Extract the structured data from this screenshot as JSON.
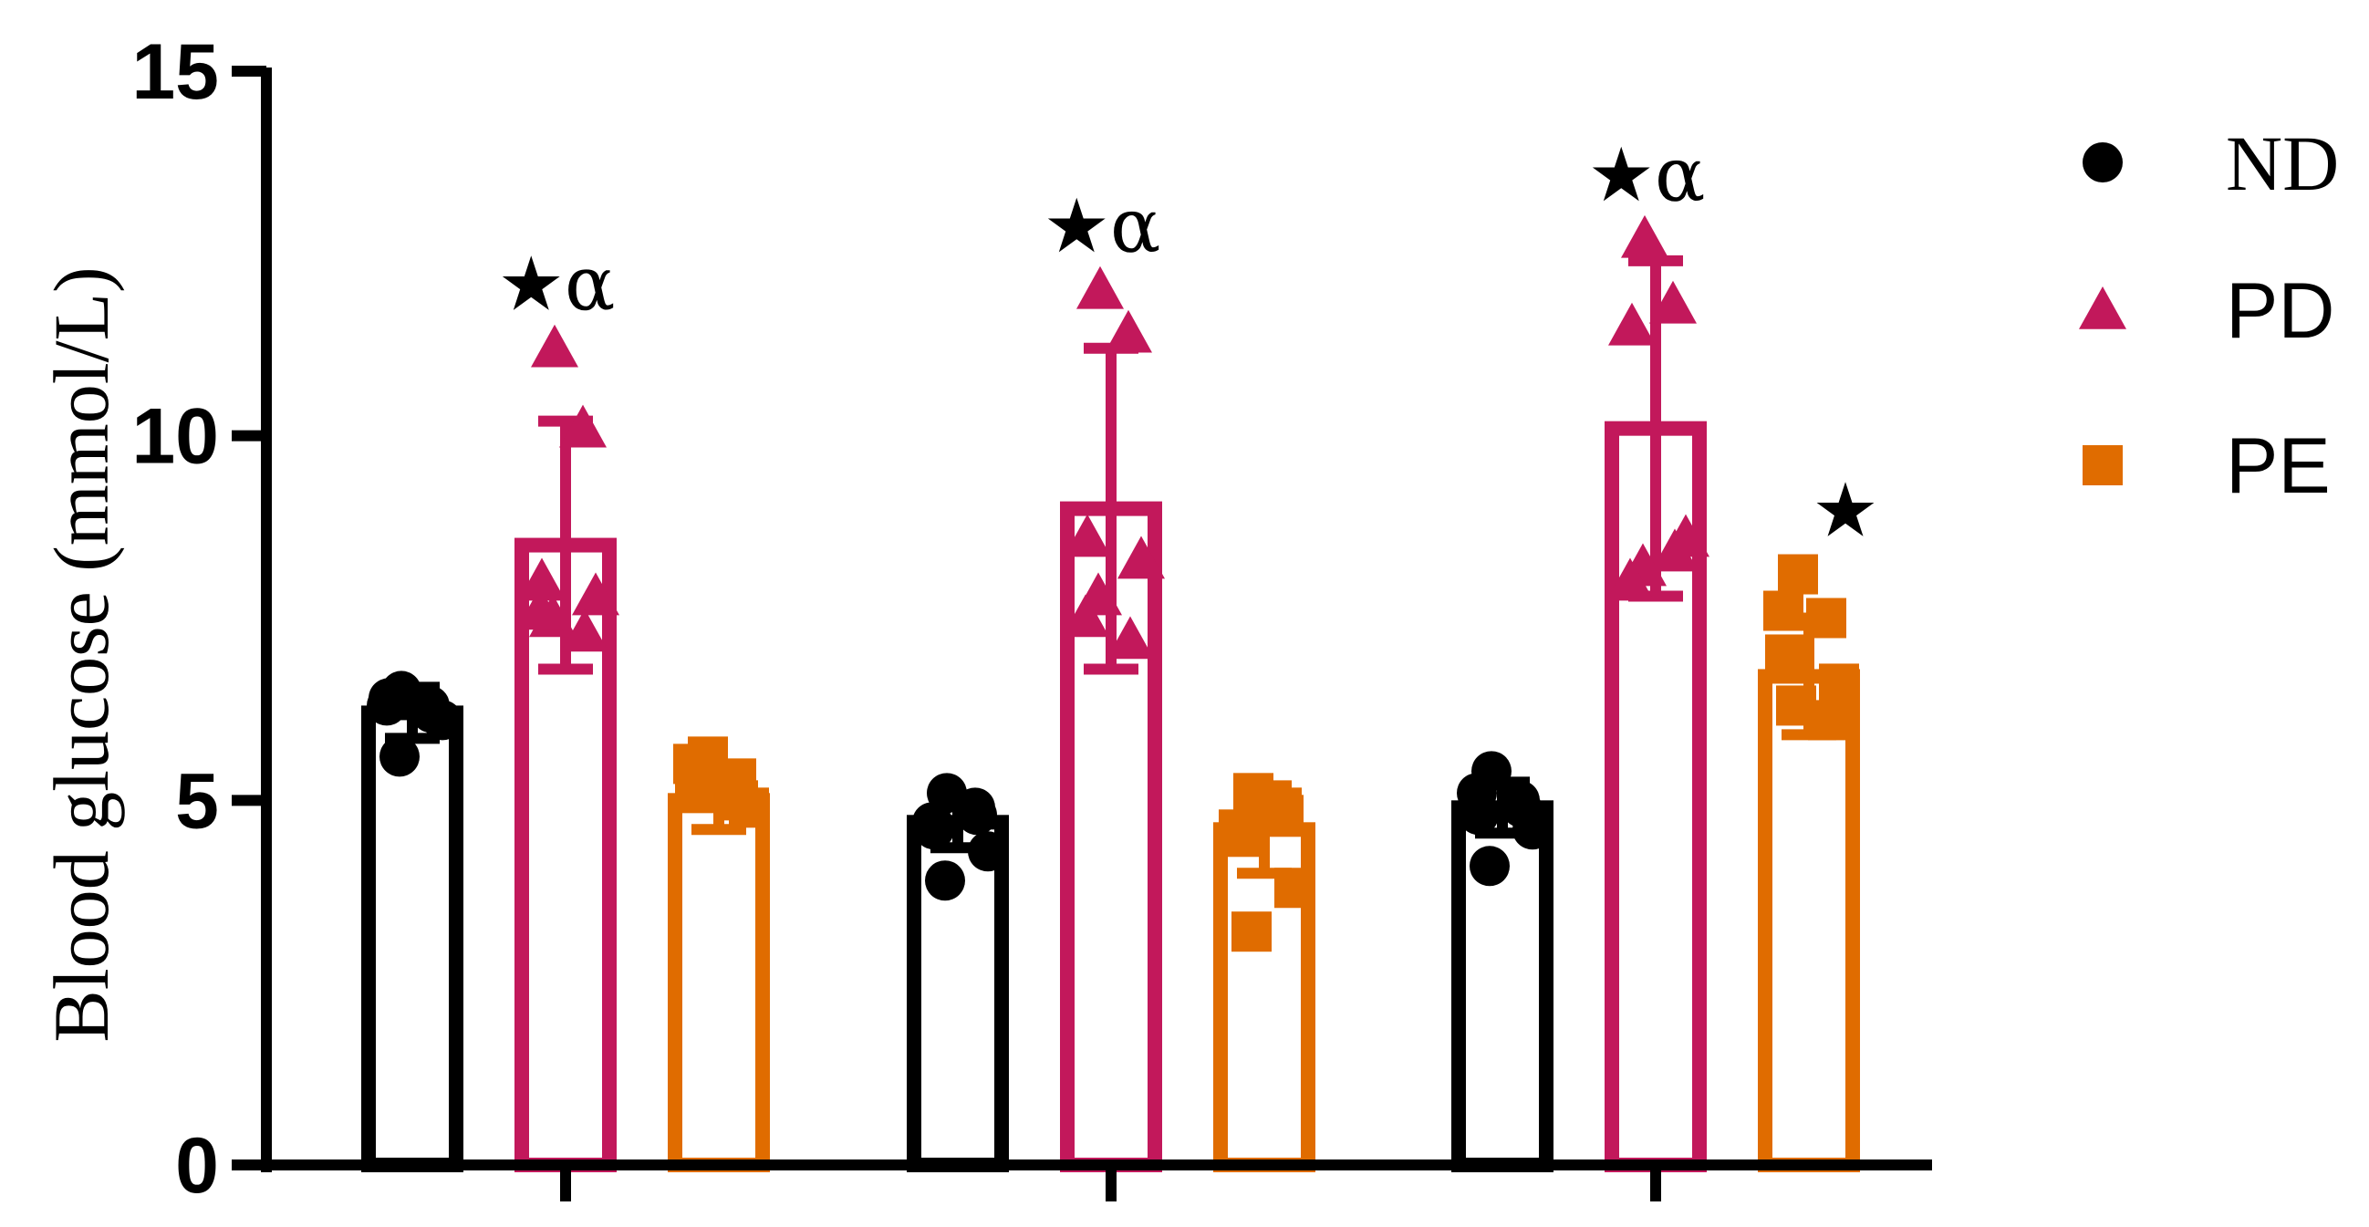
{
  "chart_data": {
    "type": "bar",
    "title": "",
    "xlabel": "",
    "ylabel": "Blood glucose (mmol/L)",
    "ylim": [
      0,
      15
    ],
    "yticks": [
      "0",
      "5",
      "10",
      "15"
    ],
    "categories": [
      "",
      "",
      ""
    ],
    "grid": false,
    "legend_position": "right",
    "series": [
      {
        "name": "ND",
        "color": "#000000",
        "marker": "circle",
        "values": [
          6.2,
          4.7,
          4.9
        ],
        "errors": [
          0.35,
          0.35,
          0.35
        ],
        "points": [
          [
            6.5,
            6.3,
            6.4,
            6.1,
            5.6,
            6.2,
            6.3
          ],
          [
            5.1,
            4.9,
            4.6,
            4.3,
            3.9,
            4.8,
            4.7
          ],
          [
            5.4,
            5.0,
            4.8,
            4.6,
            4.1,
            4.9,
            5.1
          ]
        ]
      },
      {
        "name": "PD",
        "color": "#C2185B",
        "marker": "triangle",
        "values": [
          8.5,
          9.0,
          10.1
        ],
        "errors": [
          1.7,
          2.2,
          2.3
        ],
        "points": [
          [
            11.2,
            10.1,
            8.0,
            7.8,
            7.5,
            7.3,
            7.6
          ],
          [
            12.0,
            11.4,
            8.6,
            8.3,
            7.8,
            7.2,
            7.5
          ],
          [
            12.7,
            11.8,
            11.5,
            8.6,
            8.2,
            8.4,
            8.0
          ]
        ]
      },
      {
        "name": "PE",
        "color": "#E06C00",
        "marker": "square",
        "values": [
          5.0,
          4.6,
          6.7
        ],
        "errors": [
          0.4,
          0.6,
          0.8
        ],
        "points": [
          [
            5.6,
            5.3,
            5.1,
            4.9,
            5.2,
            5.0,
            5.5
          ],
          [
            5.1,
            4.9,
            4.5,
            3.8,
            3.2,
            4.8,
            4.6
          ],
          [
            8.1,
            7.5,
            7.0,
            6.6,
            6.3,
            6.1,
            7.6
          ]
        ]
      }
    ],
    "annotations": [
      {
        "series": 1,
        "category": 0,
        "text": "★α"
      },
      {
        "series": 1,
        "category": 1,
        "text": "★α"
      },
      {
        "series": 1,
        "category": 2,
        "text": "★α"
      },
      {
        "series": 2,
        "category": 2,
        "text": "★"
      }
    ]
  }
}
